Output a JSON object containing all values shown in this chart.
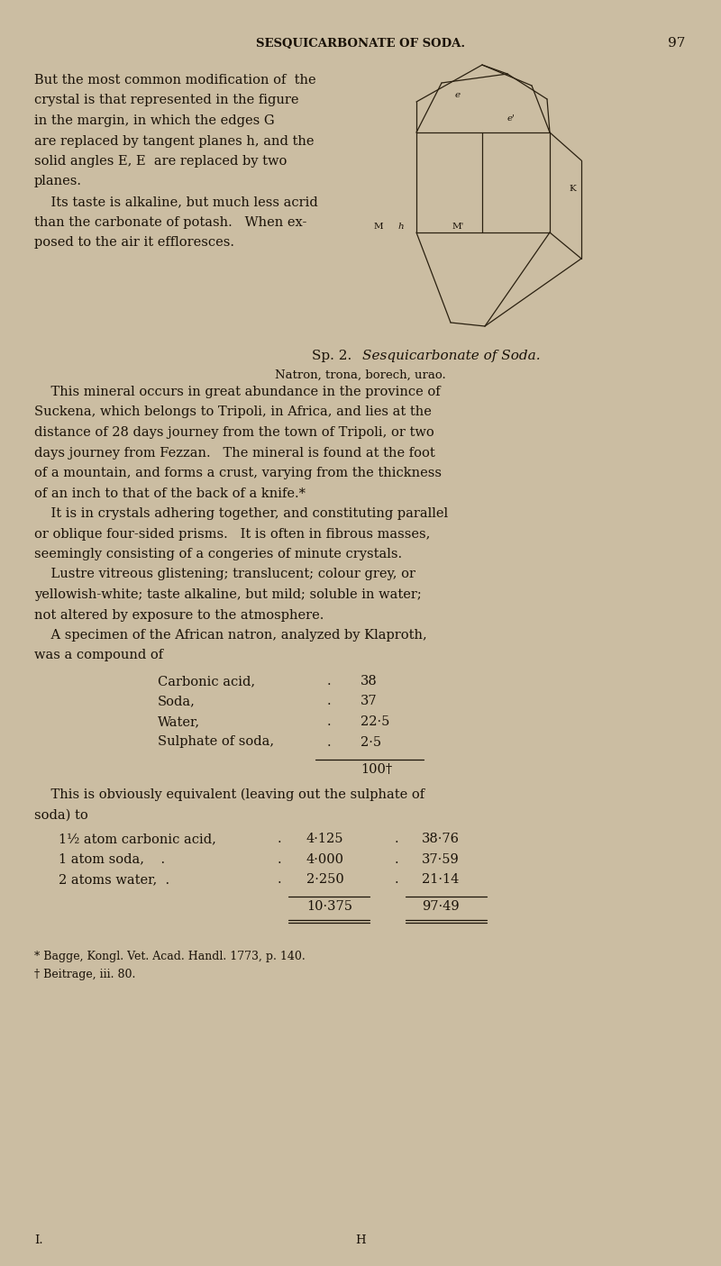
{
  "bg_color": "#cbbda2",
  "text_color": "#1a1208",
  "page_width": 8.0,
  "page_height": 14.05,
  "header_text": "SESQUICARBONATE OF SODA.",
  "page_number": "97",
  "para1_lines": [
    "But the most common modification of  the",
    "crystal is that represented in the figure",
    "in the margin, in which the edges G",
    "are replaced by tangent planes h, and the",
    "solid angles E, E  are replaced by two",
    "planes.",
    "    Its taste is alkaline, but much less acrid",
    "than the carbonate of potash.   When ex-",
    "posed to the air it effloresces."
  ],
  "sp2_roman": "Sp. 2.",
  "sp2_italic": "Sesquicarbonate of Soda.",
  "sp2_sub": "Natron, trona, borech, urao.",
  "body_lines": [
    "    This mineral occurs in great abundance in the province of",
    "Suckena, which belongs to Tripoli, in Africa, and lies at the",
    "distance of 28 days journey from the town of Tripoli, or two",
    "days journey from Fezzan.   The mineral is found at the foot",
    "of a mountain, and forms a crust, varying from the thickness",
    "of an inch to that of the back of a knife.*",
    "    It is in crystals adhering together, and constituting parallel",
    "or oblique four-sided prisms.   It is often in fibrous masses,",
    "seemingly consisting of a congeries of minute crystals.",
    "    Lustre vitreous glistening; translucent; colour grey, or",
    "yellowish-white; taste alkaline, but mild; soluble in water;",
    "not altered by exposure to the atmosphere.",
    "    A specimen of the African natron, analyzed by Klaproth,",
    "was a compound of"
  ],
  "compound_rows": [
    [
      "Carbonic acid,",
      ".",
      "38"
    ],
    [
      "Soda,",
      ".",
      "37"
    ],
    [
      "Water,",
      ".",
      "22·5"
    ],
    [
      "Sulphate of soda,",
      ".",
      "2·5"
    ]
  ],
  "total_line": "100†",
  "equiv_intro1": "    This is obviously equivalent (leaving out the sulphate of",
  "equiv_intro2": "soda) to",
  "equiv_rows": [
    [
      "1½ atom carbonic acid,",
      ".",
      "4·125",
      ".",
      "38·76"
    ],
    [
      "1 atom soda,    .",
      ".",
      "4·000",
      ".",
      "37·59"
    ],
    [
      "2 atoms water,  .",
      ".",
      "2·250",
      ".",
      "21·14"
    ]
  ],
  "equiv_totals": [
    "10·375",
    "97·49"
  ],
  "footnote1": "* Bagge, Kongl. Vet. Acad. Handl. 1773, p. 140.",
  "footnote2": "† Beitrage, iii. 80.",
  "footer_left": "I.",
  "footer_center": "H",
  "crystal_color": "#2a2010"
}
